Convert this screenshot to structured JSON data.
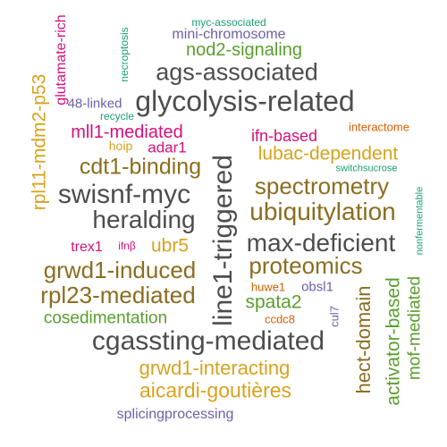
{
  "words": [
    {
      "text": "myc-associated"
    },
    {
      "text": "mini-chromosome"
    },
    {
      "text": "nod2-signaling"
    },
    {
      "text": "ags-associated"
    },
    {
      "text": "glycolysis-related"
    },
    {
      "text": "48-linked"
    },
    {
      "text": "recycle"
    },
    {
      "text": "mll1-mediated"
    },
    {
      "text": "hoip"
    },
    {
      "text": "adar1"
    },
    {
      "text": "ifn-based"
    },
    {
      "text": "interactome"
    },
    {
      "text": "lubac-dependent"
    },
    {
      "text": "switchsucrose"
    },
    {
      "text": "cdt1-binding"
    },
    {
      "text": "spectrometry"
    },
    {
      "text": "swisnf-myc"
    },
    {
      "text": "ubiquitylation"
    },
    {
      "text": "heralding"
    },
    {
      "text": "max-deficient"
    },
    {
      "text": "trex1"
    },
    {
      "text": "ifnβ"
    },
    {
      "text": "ubr5"
    },
    {
      "text": "grwd1-induced"
    },
    {
      "text": "proteomics"
    },
    {
      "text": "rpl23-mediated"
    },
    {
      "text": "huwe1"
    },
    {
      "text": "obsl1"
    },
    {
      "text": "spata2"
    },
    {
      "text": "cosedimentation"
    },
    {
      "text": "ccdc8"
    },
    {
      "text": "cgassting-mediated"
    },
    {
      "text": "grwd1-interacting"
    },
    {
      "text": "aicardi-goutières"
    },
    {
      "text": "splicingprocessing"
    },
    {
      "text": "necroptosis"
    },
    {
      "text": "glutamate-rich"
    },
    {
      "text": "rpl11-mdm2-p53"
    },
    {
      "text": "line1-triggered"
    },
    {
      "text": "cul7"
    },
    {
      "text": "hect-domain"
    },
    {
      "text": "activator-based"
    },
    {
      "text": "mof-mediated"
    },
    {
      "text": "nonfermentable"
    }
  ],
  "colors": {
    "gray": "#4d4d4d",
    "brown": "#8c6d1f",
    "gold": "#d9a21c",
    "green": "#5a9e2e",
    "pink": "#d6107a",
    "purple": "#6b5fa8",
    "teal": "#1b9e77",
    "orange": "#d95f02"
  }
}
